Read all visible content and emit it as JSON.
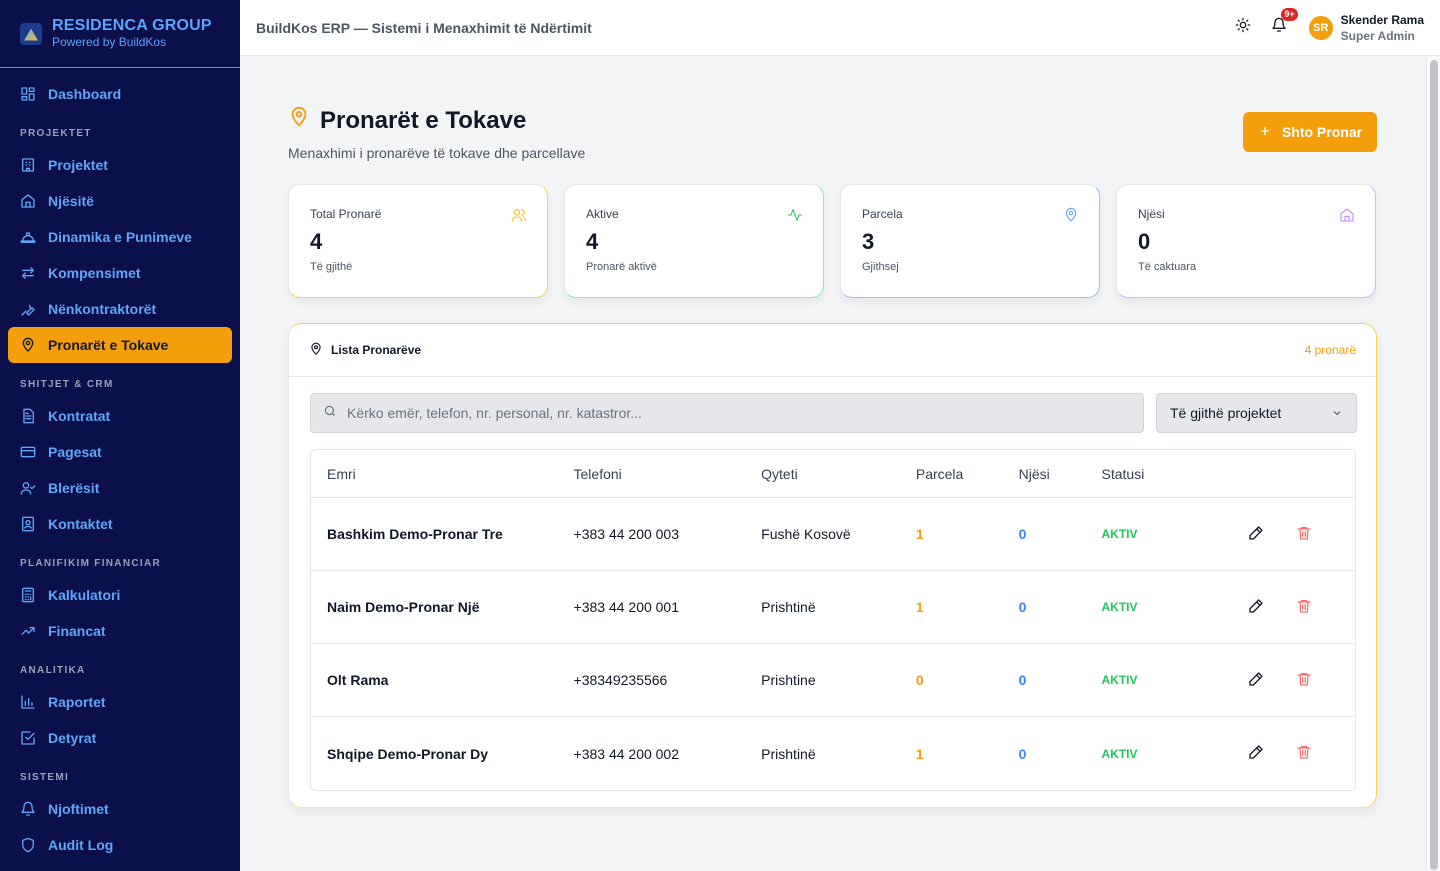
{
  "brand": {
    "name": "RESIDENCA GROUP",
    "sub": "Powered by BuildKos"
  },
  "sidebar": {
    "dashboard": "Dashboard",
    "sections": {
      "projektet": "PROJEKTET",
      "shitjet": "SHITJET & CRM",
      "planifikim": "PLANIFIKIM FINANCIAR",
      "analitika": "ANALITIKA",
      "sistemi": "SISTEMI"
    },
    "items": {
      "projektet": "Projektet",
      "njesite": "Njësitë",
      "dinamika": "Dinamika e Punimeve",
      "kompensimet": "Kompensimet",
      "nenkontraktoret": "Nënkontraktorët",
      "pronaret": "Pronarët e Tokave",
      "kontratat": "Kontratat",
      "pagesat": "Pagesat",
      "bleresit": "Blerësit",
      "kontaktet": "Kontaktet",
      "kalkulatori": "Kalkulatori",
      "financat": "Financat",
      "raportet": "Raportet",
      "detyrat": "Detyrat",
      "njoftimet": "Njoftimet",
      "audit": "Audit Log"
    }
  },
  "header": {
    "title": "BuildKos ERP — Sistemi i Menaxhimit të Ndërtimit",
    "notif_badge": "9+",
    "user_initials": "SR",
    "user_name": "Skender Rama",
    "user_role": "Super Admin"
  },
  "page": {
    "title": "Pronarët e Tokave",
    "subtitle": "Menaxhimi i pronarëve të tokave dhe parcellave",
    "add_button": "Shto Pronar"
  },
  "stats": [
    {
      "label": "Total Pronarë",
      "value": "4",
      "note": "Të gjithë",
      "icon": "users-icon",
      "color": "#fbbf24"
    },
    {
      "label": "Aktive",
      "value": "4",
      "note": "Pronarë aktivë",
      "icon": "activity-icon",
      "color": "#22c55e"
    },
    {
      "label": "Parcela",
      "value": "3",
      "note": "Gjithsej",
      "icon": "map-pin-icon",
      "color": "#60a5fa"
    },
    {
      "label": "Njësi",
      "value": "0",
      "note": "Të caktuara",
      "icon": "home-icon",
      "color": "#c084fc"
    }
  ],
  "list": {
    "title": "Lista Pronarëve",
    "count": "4 pronarë",
    "search_placeholder": "Kërko emër, telefon, nr. personal, nr. katastror...",
    "project_filter": "Të gjithë projektet",
    "columns": [
      "Emri",
      "Telefoni",
      "Qyteti",
      "Parcela",
      "Njësi",
      "Statusi"
    ],
    "rows": [
      {
        "name": "Bashkim Demo-Pronar Tre",
        "phone": "+383 44 200 003",
        "city": "Fushë Kosovë",
        "parcels": "1",
        "units": "0",
        "status": "AKTIV"
      },
      {
        "name": "Naim Demo-Pronar Një",
        "phone": "+383 44 200 001",
        "city": "Prishtinë",
        "parcels": "1",
        "units": "0",
        "status": "AKTIV"
      },
      {
        "name": "Olt Rama",
        "phone": "+38349235566",
        "city": "Prishtine",
        "parcels": "0",
        "units": "0",
        "status": "AKTIV"
      },
      {
        "name": "Shqipe Demo-Pronar Dy",
        "phone": "+383 44 200 002",
        "city": "Prishtinë",
        "parcels": "1",
        "units": "0",
        "status": "AKTIV"
      }
    ]
  },
  "colors": {
    "accent": "#f59e0b",
    "sidebar_bg": "#0b0f4a",
    "link": "#60a5fa",
    "success": "#22c55e",
    "danger": "#f87171"
  }
}
